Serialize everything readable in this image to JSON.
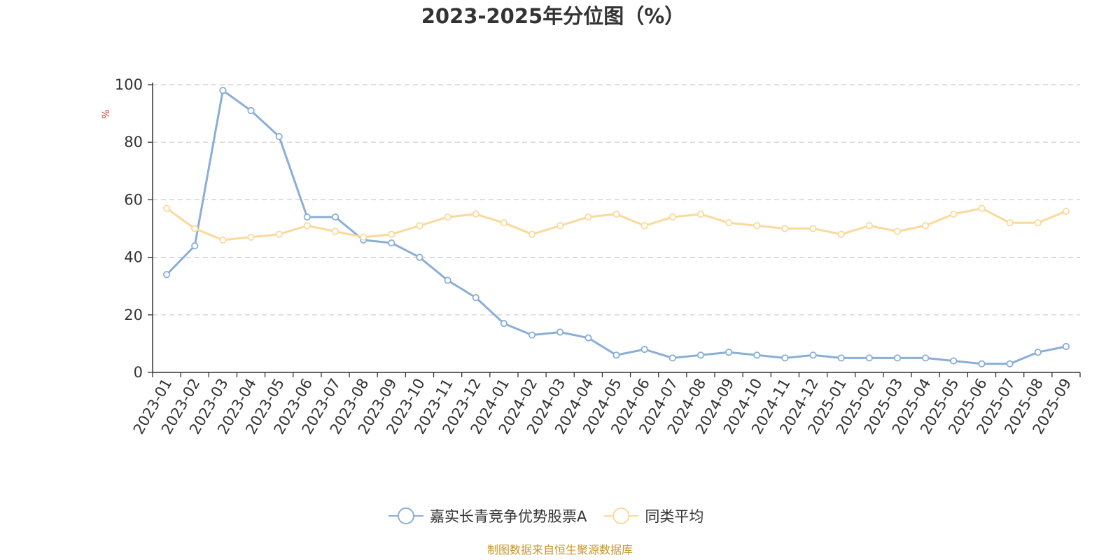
{
  "chart_data": {
    "type": "line",
    "title": "2023-2025年分位图（%）",
    "ylabel": "%",
    "ylim": [
      0,
      100
    ],
    "yticks": [
      0,
      20,
      40,
      60,
      80,
      100
    ],
    "grid": true,
    "legend_position": "bottom-center",
    "x": [
      "2023-01",
      "2023-02",
      "2023-03",
      "2023-04",
      "2023-05",
      "2023-06",
      "2023-07",
      "2023-08",
      "2023-09",
      "2023-10",
      "2023-11",
      "2023-12",
      "2024-01",
      "2024-02",
      "2024-03",
      "2024-04",
      "2024-05",
      "2024-06",
      "2024-07",
      "2024-08",
      "2024-09",
      "2024-10",
      "2024-11",
      "2024-12",
      "2025-01",
      "2025-02",
      "2025-03",
      "2025-04",
      "2025-05",
      "2025-06",
      "2025-07",
      "2025-08",
      "2025-09"
    ],
    "series": [
      {
        "name": "嘉实长青竞争优势股票A",
        "color": "#8aaed8",
        "values": [
          34,
          44,
          98,
          91,
          82,
          54,
          54,
          46,
          45,
          40,
          32,
          26,
          17,
          13,
          14,
          12,
          6,
          8,
          5,
          6,
          7,
          6,
          5,
          6,
          5,
          5,
          5,
          5,
          4,
          3,
          3,
          7,
          9
        ]
      },
      {
        "name": "同类平均",
        "color": "#fbd99a",
        "values": [
          57,
          50,
          46,
          47,
          48,
          51,
          49,
          47,
          48,
          51,
          54,
          55,
          52,
          48,
          51,
          54,
          55,
          51,
          54,
          55,
          52,
          51,
          50,
          50,
          48,
          51,
          49,
          51,
          55,
          57,
          52,
          52,
          56
        ]
      }
    ]
  },
  "colors": {
    "unit_label": "#e53935",
    "source_text": "#c8952a",
    "grid": "#cccccc",
    "axis": "#333333"
  },
  "source": "制图数据来自恒生聚源数据库"
}
